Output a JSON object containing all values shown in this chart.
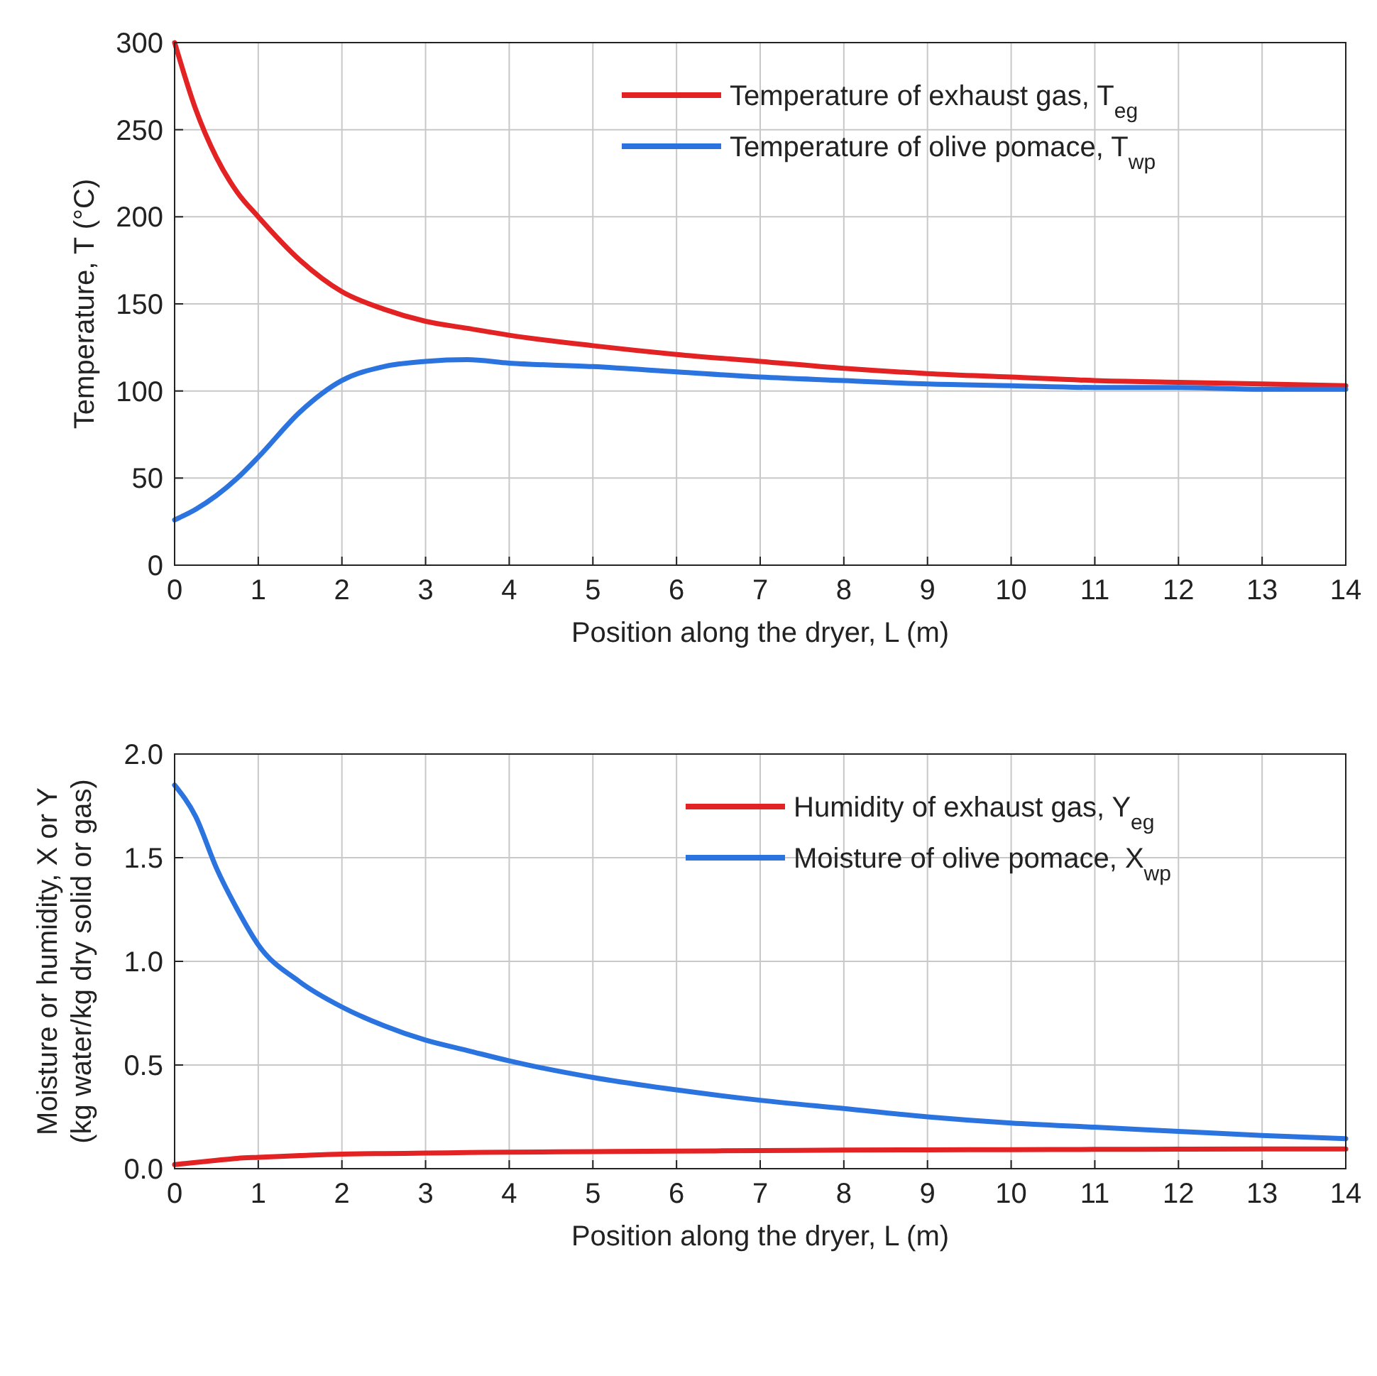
{
  "chart_data": [
    {
      "type": "line",
      "xlabel": "Position along the dryer, L (m)",
      "ylabel": "Temperature, T (°C)",
      "xlim": [
        0,
        14
      ],
      "xticks": [
        0,
        1,
        2,
        3,
        4,
        5,
        6,
        7,
        8,
        9,
        10,
        11,
        12,
        13,
        14
      ],
      "ylim": [
        0,
        300
      ],
      "yticks": [
        0,
        50,
        100,
        150,
        200,
        250,
        300
      ],
      "grid": true,
      "legend": "top right",
      "line_style": "solid",
      "marker": "none",
      "x": [
        0,
        0.25,
        0.5,
        0.75,
        1,
        1.5,
        2,
        2.5,
        3,
        3.5,
        4,
        5,
        6,
        7,
        8,
        9,
        10,
        11,
        12,
        13,
        14
      ],
      "series": [
        {
          "name": "Temperature of exhaust gas, T$_{eg}$",
          "color": "#e32224",
          "values": [
            300,
            262,
            234,
            214,
            200,
            175,
            157,
            147,
            140,
            136,
            132,
            126,
            121,
            117,
            113,
            110,
            108,
            106,
            105,
            104,
            103
          ]
        },
        {
          "name": "Temperature of olive pomace, T$_{wp}$",
          "color": "#2b74e0",
          "values": [
            26,
            32,
            40,
            50,
            62,
            88,
            106,
            114,
            117,
            118,
            116,
            114,
            111,
            108,
            106,
            104,
            103,
            102,
            102,
            101,
            101
          ]
        }
      ]
    },
    {
      "type": "line",
      "xlabel": "Position along the dryer, L (m)",
      "ylabel": "Moisture or humidity, X or Y\n(kg water/kg dry solid or gas)",
      "xlim": [
        0,
        14
      ],
      "xticks": [
        0,
        1,
        2,
        3,
        4,
        5,
        6,
        7,
        8,
        9,
        10,
        11,
        12,
        13,
        14
      ],
      "ylim": [
        0,
        2
      ],
      "yticks": [
        {
          "value": 0,
          "label": "0.0"
        },
        {
          "value": 0.5,
          "label": "0.5"
        },
        {
          "value": 1,
          "label": "1.0"
        },
        {
          "value": 1.5,
          "label": "1.5"
        },
        {
          "value": 2,
          "label": "2.0"
        }
      ],
      "grid": true,
      "legend": "top right",
      "line_style": "solid",
      "marker": "none",
      "x": [
        0,
        0.25,
        0.5,
        0.75,
        1,
        1.5,
        2,
        2.5,
        3,
        3.5,
        4,
        5,
        6,
        7,
        8,
        9,
        10,
        11,
        12,
        13,
        14
      ],
      "series": [
        {
          "name": "Humidity of exhaust gas, Y$_{eg}$",
          "color": "#e32224",
          "values": [
            0.02,
            0.03,
            0.04,
            0.05,
            0.055,
            0.063,
            0.07,
            0.073,
            0.075,
            0.078,
            0.08,
            0.082,
            0.085,
            0.087,
            0.09,
            0.091,
            0.092,
            0.093,
            0.094,
            0.095,
            0.095
          ]
        },
        {
          "name": "Moisture of olive pomace, X$_{wp}$",
          "color": "#2b74e0",
          "values": [
            1.85,
            1.7,
            1.45,
            1.25,
            1.08,
            0.9,
            0.78,
            0.69,
            0.62,
            0.57,
            0.52,
            0.44,
            0.38,
            0.33,
            0.29,
            0.25,
            0.22,
            0.2,
            0.18,
            0.16,
            0.145
          ]
        }
      ]
    }
  ]
}
